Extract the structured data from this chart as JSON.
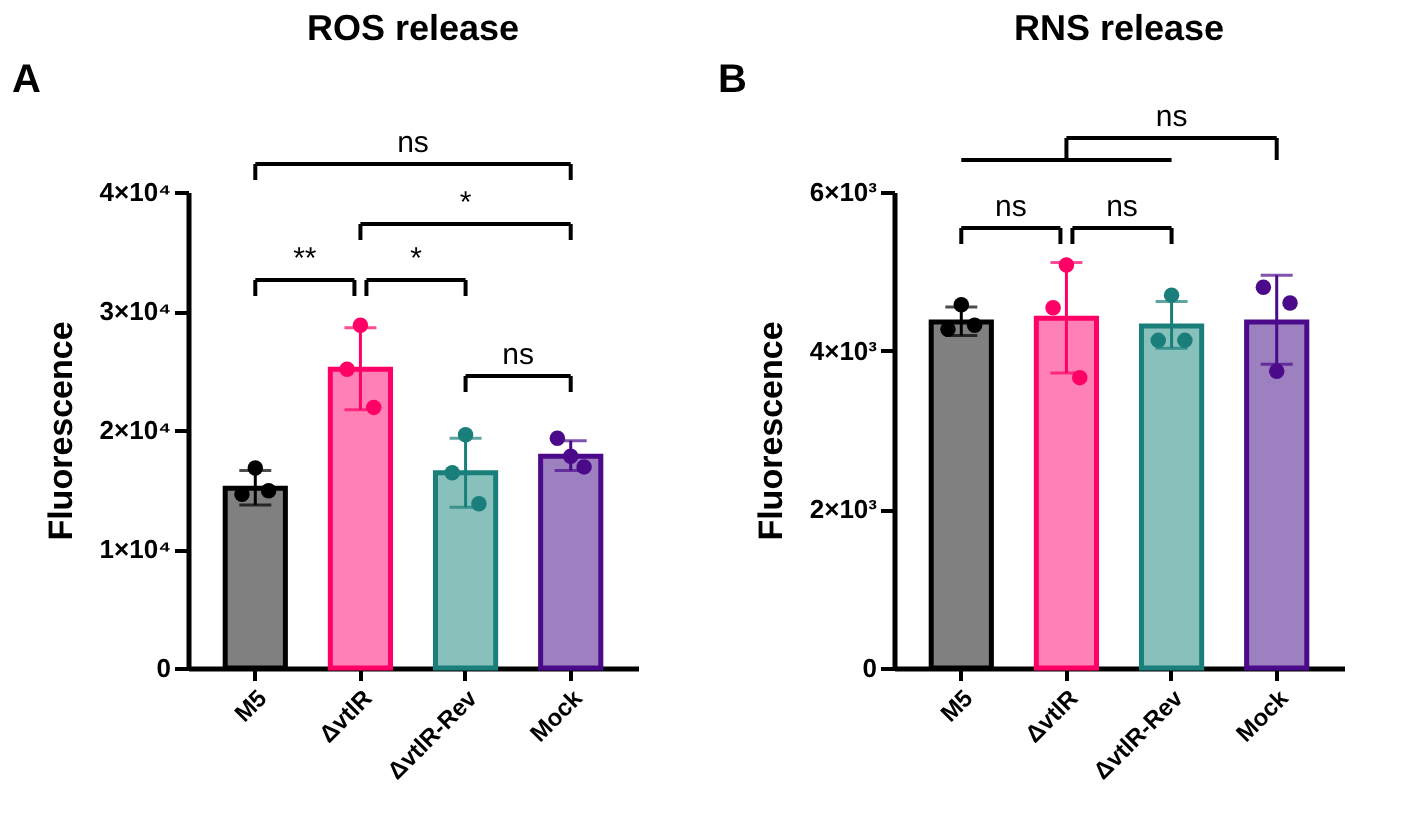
{
  "chart_data": [
    {
      "type": "bar",
      "title": "ROS release",
      "ylabel": "Fluorescence",
      "annotations": [
        "A",
        "ns",
        "*",
        "**",
        "*",
        "ns"
      ],
      "categories": [
        "M5",
        "ΔvtlR",
        "ΔvtlR-Rev",
        "Mock"
      ],
      "ylim": [
        0,
        40000
      ],
      "yticks": [
        0,
        {
          "value": 10000,
          "label": "1×10⁴"
        },
        {
          "value": 20000,
          "label": "2×10⁴"
        },
        {
          "value": 30000,
          "label": "3×10⁴"
        },
        {
          "value": 40000,
          "label": "4×10⁴"
        }
      ],
      "series": [
        {
          "type": "bar",
          "colors": [
            "#808080",
            "#ff80b4",
            "#88c0bc",
            "#9c80c0"
          ],
          "values": [
            15100,
            25100,
            16400,
            17800
          ],
          "errors": [
            [
              13700,
              16600
            ],
            [
              21700,
              28600
            ],
            [
              13500,
              19300
            ],
            [
              16600,
              19100
            ]
          ]
        },
        {
          "type": "scatter",
          "x": [
            "M5",
            "M5",
            "M5",
            "ΔvtlR",
            "ΔvtlR",
            "ΔvtlR",
            "ΔvtlR-Rev",
            "ΔvtlR-Rev",
            "ΔvtlR-Rev",
            "Mock",
            "Mock",
            "Mock"
          ],
          "values": [
            16800,
            14600,
            14900,
            28800,
            25100,
            21900,
            19600,
            16400,
            13800,
            17800,
            19300,
            16900
          ],
          "colors": [
            "#000000",
            "#000000",
            "#000000",
            "#ff0066",
            "#ff0066",
            "#ff0066",
            "#1a7f7a",
            "#1a7f7a",
            "#1a7f7a",
            "#4b0a8a",
            "#4b0a8a",
            "#4b0a8a"
          ]
        }
      ]
    },
    {
      "type": "bar",
      "title": "RNS release",
      "ylabel": "Fluorescence",
      "annotations": [
        "B",
        "ns",
        "ns",
        "ns"
      ],
      "categories": [
        "M5",
        "ΔvtlR",
        "ΔvtlR-Rev",
        "Mock"
      ],
      "ylim": [
        0,
        6000
      ],
      "yticks": [
        0,
        {
          "value": 2000,
          "label": "2×10³"
        },
        {
          "value": 4000,
          "label": "4×10³"
        },
        {
          "value": 6000,
          "label": "6×10³"
        }
      ],
      "series": [
        {
          "type": "bar",
          "colors": [
            "#808080",
            "#ff80b4",
            "#88c0bc",
            "#9c80c0"
          ],
          "values": [
            4360,
            4410,
            4310,
            4360
          ],
          "errors": [
            [
              4190,
              4550
            ],
            [
              3720,
              5110
            ],
            [
              4030,
              4620
            ],
            [
              3830,
              4950
            ]
          ]
        },
        {
          "type": "scatter",
          "x": [
            "M5",
            "M5",
            "M5",
            "ΔvtlR",
            "ΔvtlR",
            "ΔvtlR",
            "ΔvtlR-Rev",
            "ΔvtlR-Rev",
            "ΔvtlR-Rev",
            "Mock",
            "Mock",
            "Mock"
          ],
          "values": [
            4580,
            4270,
            4320,
            5080,
            4540,
            3660,
            4700,
            4130,
            4130,
            3740,
            4800,
            4600
          ],
          "colors": [
            "#000000",
            "#000000",
            "#000000",
            "#ff0066",
            "#ff0066",
            "#ff0066",
            "#1a7f7a",
            "#1a7f7a",
            "#1a7f7a",
            "#4b0a8a",
            "#4b0a8a",
            "#4b0a8a"
          ]
        }
      ]
    }
  ]
}
